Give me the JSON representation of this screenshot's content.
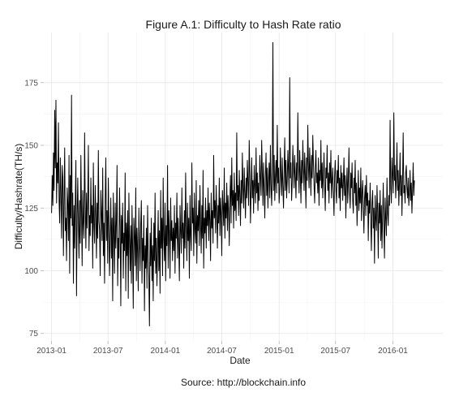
{
  "chart_data": {
    "type": "line",
    "title": "Figure A.1: Difficulty to Hash Rate ratio",
    "xlabel": "Date",
    "ylabel": "Difficulty/Hashrate(TH/s)",
    "caption": "Source: http://blockchain.info",
    "x_range": [
      "2013-01-01",
      "2016-05-15"
    ],
    "ylim": [
      72,
      195
    ],
    "x_ticks": [
      "2013-01",
      "2013-07",
      "2014-01",
      "2014-07",
      "2015-01",
      "2015-07",
      "2016-01"
    ],
    "y_ticks": [
      75,
      100,
      125,
      150,
      175
    ],
    "grid": true,
    "legend": "none",
    "line_color": "#000000",
    "series": [
      {
        "x_start": "2013-01-01",
        "x_step_days": 2,
        "values": [
          123,
          138,
          126,
          147,
          132,
          164,
          141,
          168,
          127,
          143,
          135,
          159,
          128,
          119,
          145,
          131,
          113,
          142,
          137,
          106,
          128,
          149,
          116,
          121,
          104,
          133,
          127,
          112,
          146,
          99,
          138,
          121,
          170,
          118,
          131,
          95,
          126,
          109,
          128,
          144,
          90,
          122,
          137,
          118,
          105,
          128,
          111,
          146,
          124,
          102,
          132,
          119,
          113,
          155,
          125,
          109,
          131,
          117,
          128,
          150,
          108,
          122,
          114,
          137,
          119,
          126,
          101,
          143,
          118,
          111,
          134,
          122,
          105,
          127,
          113,
          148,
          120,
          116,
          98,
          132,
          123,
          112,
          141,
          106,
          119,
          95,
          128,
          145,
          112,
          124,
          103,
          137,
          118,
          98,
          113,
          129,
          105,
          121,
          88,
          131,
          116,
          99,
          127,
          109,
          120,
          142,
          94,
          113,
          105,
          133,
          118,
          86,
          122,
          111,
          127,
          97,
          115,
          108,
          139,
          92,
          119,
          106,
          124,
          89,
          131,
          112,
          100,
          118,
          95,
          126,
          109,
          85,
          121,
          114,
          102,
          133,
          96,
          117,
          108,
          92,
          125,
          111,
          100,
          119,
          128,
          95,
          113,
          104,
          122,
          84,
          110,
          101,
          117,
          93,
          126,
          108,
          97,
          78,
          115,
          102,
          121,
          96,
          110,
          88,
          119,
          104,
          131,
          99,
          113,
          94,
          108,
          124,
          100,
          116,
          91,
          132,
          109,
          121,
          98,
          137,
          113,
          104,
          127,
          96,
          118,
          110,
          142,
          101,
          124,
          115,
          97,
          129,
          112,
          120,
          104,
          117,
          108,
          126,
          99,
          119,
          113,
          131,
          105,
          121,
          110,
          96,
          126,
          116,
          107,
          133,
          113,
          119,
          101,
          124,
          109,
          139,
          118,
          104,
          127,
          112,
          121,
          97,
          130,
          114,
          108,
          143,
          119,
          125,
          106,
          131,
          116,
          111,
          136,
          103,
          122,
          116,
          128,
          110,
          134,
          119,
          107,
          126,
          113,
          140,
          101,
          121,
          115,
          129,
          109,
          124,
          118,
          133,
          112,
          127,
          120,
          104,
          131,
          117,
          124,
          111,
          146,
          121,
          128,
          115,
          134,
          123,
          109,
          126,
          119,
          137,
          114,
          129,
          122,
          106,
          132,
          125,
          118,
          141,
          113,
          127,
          121,
          135,
          116,
          130,
          124,
          110,
          128,
          138,
          119,
          145,
          126,
          132,
          117,
          139,
          124,
          131,
          120,
          155,
          128,
          134,
          122,
          140,
          130,
          118,
          136,
          127,
          147,
          133,
          125,
          141,
          131,
          121,
          137,
          129,
          144,
          135,
          126,
          152,
          138,
          119,
          132,
          145,
          129,
          136,
          123,
          142,
          134,
          127,
          149,
          131,
          139,
          124,
          135,
          128,
          146,
          137,
          130,
          152,
          139,
          126,
          143,
          133,
          121,
          138,
          147,
          130,
          141,
          125,
          136,
          143,
          129,
          150,
          134,
          126,
          140,
          191,
          132,
          146,
          128,
          137,
          144,
          131,
          158,
          135,
          141,
          127,
          133,
          149,
          138,
          130,
          145,
          134,
          125,
          140,
          153,
          132,
          144,
          129,
          136,
          148,
          140,
          131,
          177,
          137,
          143,
          128,
          135,
          150,
          141,
          133,
          146,
          138,
          129,
          143,
          136,
          163,
          142,
          131,
          148,
          139,
          127,
          144,
          135,
          152,
          141,
          132,
          147,
          138,
          125,
          145,
          136,
          158,
          142,
          133,
          149,
          140,
          130,
          146,
          137,
          154,
          143,
          134,
          127,
          141,
          148,
          135,
          139,
          131,
          145,
          126,
          140,
          136,
          152,
          133,
          143,
          129,
          138,
          147,
          134,
          124,
          141,
          137,
          150,
          132,
          139,
          127,
          143,
          135,
          148,
          129,
          136,
          141,
          131,
          122,
          138,
          144,
          133,
          127,
          140,
          135,
          146,
          129,
          137,
          124,
          142,
          133,
          139,
          128,
          135,
          145,
          130,
          138,
          121,
          134,
          141,
          127,
          136,
          149,
          131,
          125,
          139,
          133,
          143,
          128,
          123,
          137,
          131,
          144,
          126,
          135,
          118,
          129,
          140,
          124,
          133,
          127,
          141,
          120,
          131,
          136,
          125,
          115,
          129,
          134,
          122,
          138,
          126,
          131,
          112,
          128,
          123,
          135,
          119,
          108,
          127,
          132,
          117,
          125,
          103,
          130,
          121,
          116,
          134,
          124,
          105,
          127,
          119,
          132,
          112,
          126,
          109,
          122,
          135,
          117,
          105,
          129,
          121,
          114,
          137,
          123,
          118,
          130,
          126,
          160,
          133,
          127,
          145,
          138,
          131,
          163,
          136,
          142,
          129,
          137,
          151,
          132,
          140,
          126,
          135,
          147,
          130,
          138,
          122,
          136,
          155,
          131,
          134,
          127,
          139,
          142,
          133,
          129,
          137,
          126,
          131,
          140,
          128,
          135,
          123,
          132,
          143,
          130,
          136
        ]
      }
    ]
  }
}
